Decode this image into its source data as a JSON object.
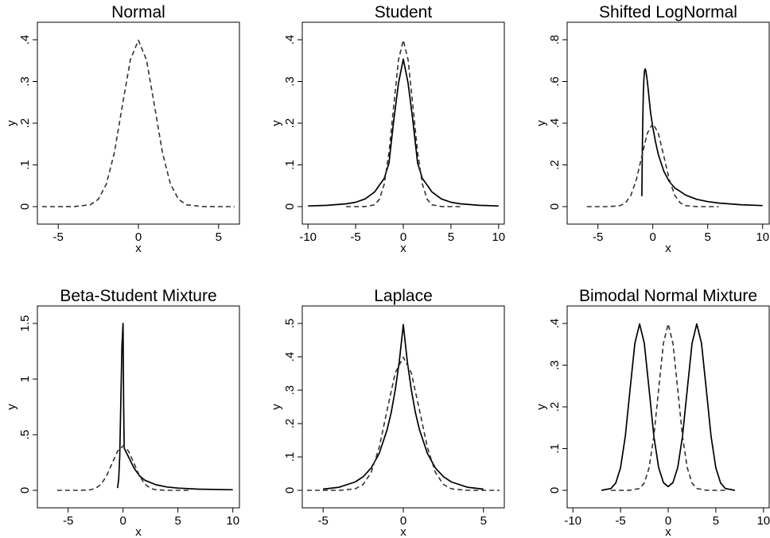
{
  "chart_data": [
    {
      "type": "line",
      "title": "Normal",
      "xlabel": "x",
      "ylabel": "y",
      "xlim": [
        -6.3,
        6.3
      ],
      "ylim": [
        0,
        0.4
      ],
      "xticks": [
        -5,
        0,
        5
      ],
      "xtick_labels": [
        "-5",
        "0",
        "5"
      ],
      "yticks": [
        0,
        0.1,
        0.2,
        0.3,
        0.4
      ],
      "ytick_labels": [
        "0",
        ".1",
        ".2",
        ".3",
        ".4"
      ],
      "series": [
        {
          "style": "dashed",
          "x": [
            -6,
            -5,
            -4,
            -3,
            -2.5,
            -2,
            -1.5,
            -1,
            -0.5,
            0,
            0.5,
            1,
            1.5,
            2,
            2.5,
            3,
            4,
            5,
            6
          ],
          "y": [
            0,
            0,
            0.0001,
            0.0044,
            0.0175,
            0.054,
            0.1295,
            0.242,
            0.3521,
            0.3989,
            0.3521,
            0.242,
            0.1295,
            0.054,
            0.0175,
            0.0044,
            0.0001,
            0,
            0
          ]
        }
      ]
    },
    {
      "type": "line",
      "title": "Student",
      "xlabel": "x",
      "ylabel": "y",
      "xlim": [
        -10.6,
        10.6
      ],
      "ylim": [
        0,
        0.4
      ],
      "xticks": [
        -10,
        -5,
        0,
        5,
        10
      ],
      "xtick_labels": [
        "-10",
        "-5",
        "0",
        "5",
        "10"
      ],
      "yticks": [
        0,
        0.1,
        0.2,
        0.3,
        0.4
      ],
      "ytick_labels": [
        "0",
        ".1",
        ".2",
        ".3",
        ".4"
      ],
      "series": [
        {
          "style": "solid",
          "x": [
            -10,
            -8,
            -6,
            -5,
            -4,
            -3,
            -2.5,
            -2,
            -1.5,
            -1,
            -0.5,
            0,
            0.5,
            1,
            1.5,
            2,
            2.5,
            3,
            4,
            5,
            6,
            8,
            10
          ],
          "y": [
            0.0016,
            0.003,
            0.0066,
            0.0105,
            0.0185,
            0.0354,
            0.0516,
            0.0675,
            0.1042,
            0.2067,
            0.2964,
            0.3536,
            0.2964,
            0.2067,
            0.1042,
            0.0675,
            0.0516,
            0.0354,
            0.0185,
            0.0105,
            0.0066,
            0.003,
            0.0016
          ]
        },
        {
          "style": "dashed",
          "x": [
            -6,
            -5,
            -4,
            -3,
            -2.5,
            -2,
            -1.5,
            -1,
            -0.5,
            0,
            0.5,
            1,
            1.5,
            2,
            2.5,
            3,
            4,
            5,
            6
          ],
          "y": [
            0,
            0,
            0.0001,
            0.0044,
            0.0175,
            0.054,
            0.1295,
            0.242,
            0.3521,
            0.3989,
            0.3521,
            0.242,
            0.1295,
            0.054,
            0.0175,
            0.0044,
            0.0001,
            0,
            0
          ]
        }
      ]
    },
    {
      "type": "line",
      "title": "Shifted LogNormal",
      "xlabel": "x",
      "ylabel": "y",
      "xlim": [
        -7.8,
        10.6
      ],
      "ylim": [
        0,
        0.8
      ],
      "xticks": [
        -5,
        0,
        5,
        10
      ],
      "xtick_labels": [
        "-5",
        "0",
        "5",
        "10"
      ],
      "yticks": [
        0,
        0.2,
        0.4,
        0.6,
        0.8
      ],
      "ytick_labels": [
        "0",
        ".2",
        ".4",
        ".6",
        ".8"
      ],
      "series": [
        {
          "style": "solid",
          "x": [
            -1.0,
            -0.95,
            -0.9,
            -0.85,
            -0.8,
            -0.75,
            -0.7,
            -0.65,
            -0.6,
            -0.5,
            -0.4,
            -0.3,
            -0.2,
            0,
            0.25,
            0.5,
            1,
            1.5,
            2,
            3,
            4,
            5,
            6,
            8,
            10
          ],
          "y": [
            0.05,
            0.3,
            0.46,
            0.56,
            0.62,
            0.65,
            0.66,
            0.655,
            0.64,
            0.6,
            0.55,
            0.5,
            0.45,
            0.38,
            0.31,
            0.25,
            0.17,
            0.12,
            0.09,
            0.055,
            0.035,
            0.024,
            0.017,
            0.009,
            0.005
          ]
        },
        {
          "style": "dashed",
          "x": [
            -6,
            -5,
            -4,
            -3,
            -2.5,
            -2,
            -1.5,
            -1,
            -0.5,
            0,
            0.5,
            1,
            1.5,
            2,
            2.5,
            3,
            4,
            5,
            6
          ],
          "y": [
            0,
            0,
            0.0001,
            0.0044,
            0.0175,
            0.054,
            0.1295,
            0.242,
            0.3521,
            0.3989,
            0.3521,
            0.242,
            0.1295,
            0.054,
            0.0175,
            0.0044,
            0.0001,
            0,
            0
          ]
        }
      ]
    },
    {
      "type": "line",
      "title": "Beta-Student Mixture",
      "xlabel": "x",
      "ylabel": "y",
      "xlim": [
        -7.8,
        10.6
      ],
      "ylim": [
        0,
        1.5
      ],
      "xticks": [
        -5,
        0,
        5,
        10
      ],
      "xtick_labels": [
        "-5",
        "0",
        "5",
        "10"
      ],
      "yticks": [
        0,
        0.5,
        1,
        1.5
      ],
      "ytick_labels": [
        "0",
        ".5",
        "1",
        "1.5"
      ],
      "series": [
        {
          "style": "solid",
          "x": [
            -0.5,
            -0.4,
            -0.3,
            -0.2,
            -0.1,
            0,
            0.05,
            0.1,
            0.2,
            0.3,
            0.5,
            1,
            1.5,
            2,
            3,
            4,
            5,
            7,
            10
          ],
          "y": [
            0.02,
            0.1,
            0.3,
            0.8,
            1.3,
            1.5,
            0.8,
            0.38,
            0.36,
            0.34,
            0.3,
            0.2,
            0.13,
            0.09,
            0.05,
            0.03,
            0.02,
            0.01,
            0.005
          ]
        },
        {
          "style": "dashed",
          "x": [
            -6,
            -5,
            -4,
            -3,
            -2.5,
            -2,
            -1.5,
            -1,
            -0.5,
            0,
            0.5,
            1,
            1.5,
            2,
            2.5,
            3,
            4,
            5,
            6
          ],
          "y": [
            0,
            0,
            0.0001,
            0.0044,
            0.0175,
            0.054,
            0.1295,
            0.242,
            0.3521,
            0.3989,
            0.3521,
            0.242,
            0.1295,
            0.054,
            0.0175,
            0.0044,
            0.0001,
            0,
            0
          ]
        }
      ]
    },
    {
      "type": "line",
      "title": "Laplace",
      "xlabel": "x",
      "ylabel": "y",
      "xlim": [
        -6.3,
        6.3
      ],
      "ylim": [
        0,
        0.5
      ],
      "xticks": [
        -5,
        0,
        5
      ],
      "xtick_labels": [
        "-5",
        "0",
        "5"
      ],
      "yticks": [
        0,
        0.1,
        0.2,
        0.3,
        0.4,
        0.5
      ],
      "ytick_labels": [
        "0",
        ".1",
        ".2",
        ".3",
        ".4",
        ".5"
      ],
      "series": [
        {
          "style": "solid",
          "x": [
            -5,
            -4,
            -3,
            -2.5,
            -2,
            -1.5,
            -1,
            -0.75,
            -0.5,
            -0.25,
            0,
            0.25,
            0.5,
            0.75,
            1,
            1.5,
            2,
            2.5,
            3,
            4,
            5
          ],
          "y": [
            0.0036,
            0.0093,
            0.0249,
            0.0409,
            0.0672,
            0.1109,
            0.1828,
            0.2346,
            0.3013,
            0.3867,
            0.4965,
            0.3867,
            0.3013,
            0.2346,
            0.1828,
            0.1109,
            0.0672,
            0.0409,
            0.0249,
            0.0093,
            0.0036
          ]
        },
        {
          "style": "dashed",
          "x": [
            -6,
            -5,
            -4,
            -3,
            -2.5,
            -2,
            -1.5,
            -1,
            -0.5,
            0,
            0.5,
            1,
            1.5,
            2,
            2.5,
            3,
            4,
            5,
            6
          ],
          "y": [
            0,
            0,
            0.0001,
            0.0044,
            0.0175,
            0.054,
            0.1295,
            0.242,
            0.3521,
            0.3989,
            0.3521,
            0.242,
            0.1295,
            0.054,
            0.0175,
            0.0044,
            0.0001,
            0,
            0
          ]
        }
      ]
    },
    {
      "type": "line",
      "title": "Bimodal Normal Mixture",
      "xlabel": "x",
      "ylabel": "y",
      "xlim": [
        -10.6,
        10.6
      ],
      "ylim": [
        0,
        0.4
      ],
      "xticks": [
        -10,
        -5,
        0,
        5,
        10
      ],
      "xtick_labels": [
        "-10",
        "-5",
        "0",
        "5",
        "10"
      ],
      "yticks": [
        0,
        0.1,
        0.2,
        0.3,
        0.4
      ],
      "ytick_labels": [
        "0",
        ".1",
        ".2",
        ".3",
        ".4"
      ],
      "series": [
        {
          "style": "solid",
          "x": [
            -7,
            -6,
            -5.5,
            -5,
            -4.5,
            -4,
            -3.5,
            -3,
            -2.5,
            -2,
            -1.5,
            -1,
            -0.5,
            0,
            0.5,
            1,
            1.5,
            2,
            2.5,
            3,
            3.5,
            4,
            4.5,
            5,
            5.5,
            6,
            7
          ],
          "y": [
            0,
            0.0044,
            0.0175,
            0.054,
            0.1295,
            0.242,
            0.3521,
            0.3989,
            0.3521,
            0.242,
            0.1295,
            0.0545,
            0.0184,
            0.0089,
            0.0184,
            0.0545,
            0.1295,
            0.242,
            0.3521,
            0.3989,
            0.3521,
            0.242,
            0.1295,
            0.054,
            0.0175,
            0.0044,
            0
          ]
        },
        {
          "style": "dashed",
          "x": [
            -6,
            -5,
            -4,
            -3,
            -2.5,
            -2,
            -1.5,
            -1,
            -0.5,
            0,
            0.5,
            1,
            1.5,
            2,
            2.5,
            3,
            4,
            5,
            6
          ],
          "y": [
            0,
            0,
            0.0001,
            0.0044,
            0.0175,
            0.054,
            0.1295,
            0.242,
            0.3521,
            0.3989,
            0.3521,
            0.242,
            0.1295,
            0.054,
            0.0175,
            0.0044,
            0.0001,
            0,
            0
          ]
        }
      ]
    }
  ]
}
